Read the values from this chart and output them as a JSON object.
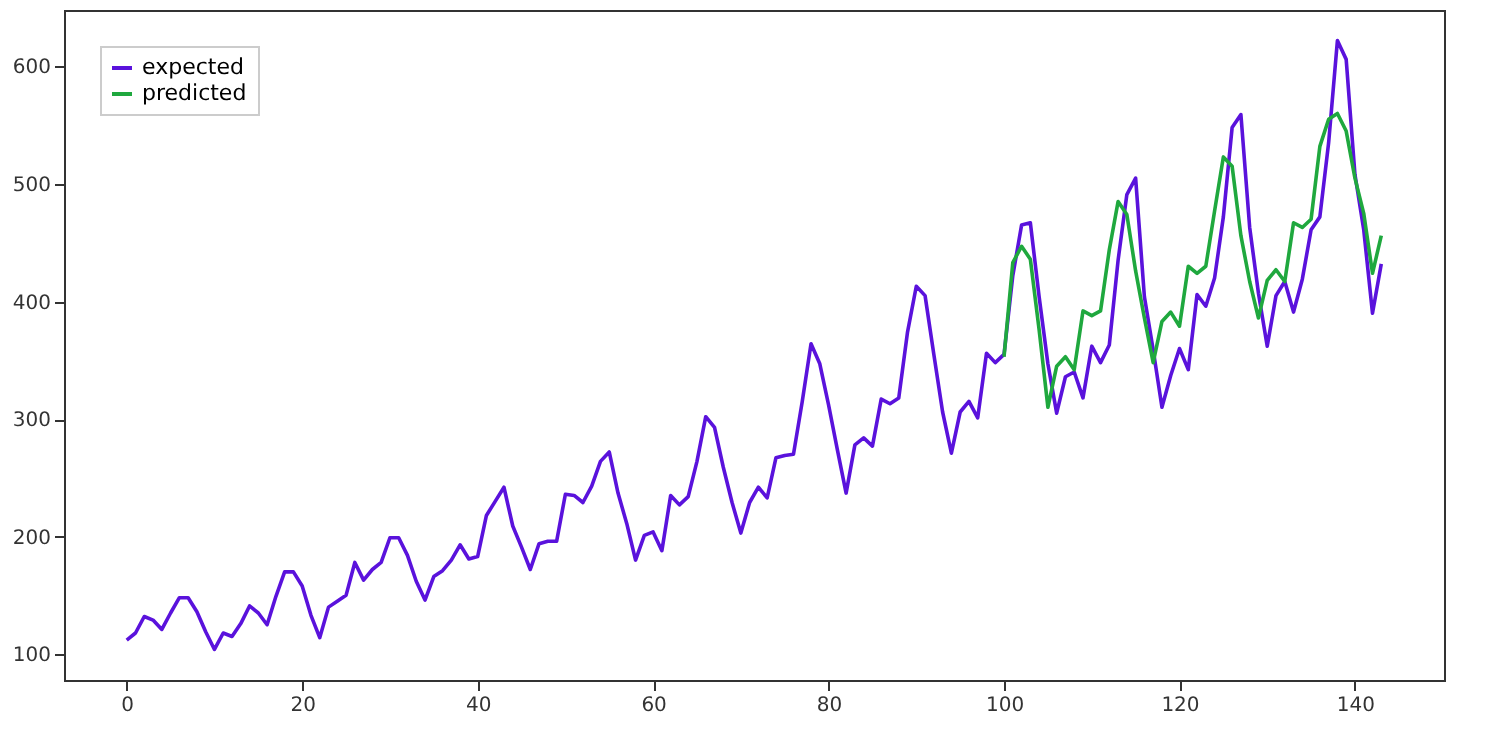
{
  "chart_data": {
    "type": "line",
    "xlim": [
      -7.15,
      150.15
    ],
    "ylim": [
      78,
      648
    ],
    "xticks": [
      0,
      20,
      40,
      60,
      80,
      100,
      120,
      140
    ],
    "yticks": [
      100,
      200,
      300,
      400,
      500,
      600
    ],
    "grid": false,
    "legend": "top left",
    "series": [
      {
        "name": "expected",
        "color": "#5a12dc",
        "x": [
          0,
          1,
          2,
          3,
          4,
          5,
          6,
          7,
          8,
          9,
          10,
          11,
          12,
          13,
          14,
          15,
          16,
          17,
          18,
          19,
          20,
          21,
          22,
          23,
          24,
          25,
          26,
          27,
          28,
          29,
          30,
          31,
          32,
          33,
          34,
          35,
          36,
          37,
          38,
          39,
          40,
          41,
          42,
          43,
          44,
          45,
          46,
          47,
          48,
          49,
          50,
          51,
          52,
          53,
          54,
          55,
          56,
          57,
          58,
          59,
          60,
          61,
          62,
          63,
          64,
          65,
          66,
          67,
          68,
          69,
          70,
          71,
          72,
          73,
          74,
          75,
          76,
          77,
          78,
          79,
          80,
          81,
          82,
          83,
          84,
          85,
          86,
          87,
          88,
          89,
          90,
          91,
          92,
          93,
          94,
          95,
          96,
          97,
          98,
          99,
          100,
          101,
          102,
          103,
          104,
          105,
          106,
          107,
          108,
          109,
          110,
          111,
          112,
          113,
          114,
          115,
          116,
          117,
          118,
          119,
          120,
          121,
          122,
          123,
          124,
          125,
          126,
          127,
          128,
          129,
          130,
          131,
          132,
          133,
          134,
          135,
          136,
          137,
          138,
          139,
          140,
          141,
          142,
          143
        ],
        "values": [
          112,
          118,
          132,
          129,
          121,
          135,
          148,
          148,
          136,
          119,
          104,
          118,
          115,
          126,
          141,
          135,
          125,
          149,
          170,
          170,
          158,
          133,
          114,
          140,
          145,
          150,
          178,
          163,
          172,
          178,
          199,
          199,
          184,
          162,
          146,
          166,
          171,
          180,
          193,
          181,
          183,
          218,
          230,
          242,
          209,
          191,
          172,
          194,
          196,
          196,
          236,
          235,
          229,
          243,
          264,
          272,
          237,
          211,
          180,
          201,
          204,
          188,
          235,
          227,
          234,
          264,
          302,
          293,
          259,
          229,
          203,
          229,
          242,
          233,
          267,
          269,
          270,
          315,
          364,
          347,
          312,
          274,
          237,
          278,
          284,
          277,
          317,
          313,
          318,
          374,
          413,
          405,
          355,
          306,
          271,
          306,
          315,
          301,
          356,
          348,
          355,
          422,
          465,
          467,
          404,
          347,
          305,
          336,
          340,
          318,
          362,
          348,
          363,
          435,
          491,
          505,
          404,
          359,
          310,
          337,
          360,
          342,
          406,
          396,
          420,
          472,
          548,
          559,
          463,
          407,
          362,
          405,
          417,
          391,
          419,
          461,
          472,
          535,
          622,
          606,
          508,
          461,
          390,
          432
        ]
      },
      {
        "name": "predicted",
        "color": "#1fa83e",
        "x": [
          100,
          101,
          102,
          103,
          104,
          105,
          106,
          107,
          108,
          109,
          110,
          111,
          112,
          113,
          114,
          115,
          116,
          117,
          118,
          119,
          120,
          121,
          122,
          123,
          124,
          125,
          126,
          127,
          128,
          129,
          130,
          131,
          132,
          133,
          134,
          135,
          136,
          137,
          138,
          139,
          140,
          141,
          142,
          143
        ],
        "values": [
          353,
          433,
          447,
          436,
          376,
          310,
          345,
          353,
          342,
          392,
          388,
          392,
          444,
          485,
          474,
          426,
          386,
          348,
          383,
          391,
          379,
          430,
          424,
          430,
          477,
          523,
          515,
          456,
          417,
          386,
          418,
          427,
          417,
          467,
          463,
          470,
          532,
          555,
          560,
          545,
          505,
          475,
          424,
          456
        ]
      }
    ]
  }
}
